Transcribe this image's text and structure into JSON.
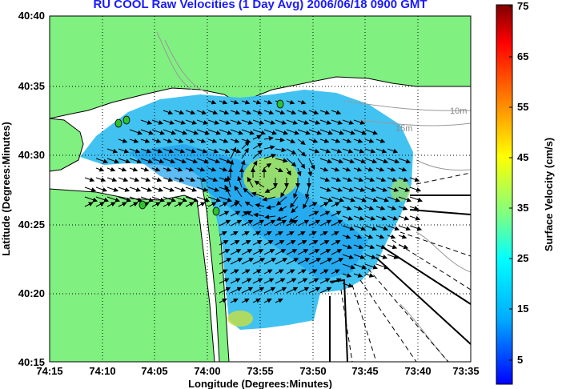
{
  "title": "RU COOL Raw Velocities (1 Day Avg) 2006/06/18 0900 GMT",
  "map": {
    "xlabel": "Longitude (Degrees:Minutes)",
    "ylabel": "Latitude (Degrees:Minutes)",
    "x_ticks": [
      "74:15",
      "74:10",
      "74:05",
      "74:00",
      "73:55",
      "73:50",
      "73:45",
      "73:40",
      "73:35"
    ],
    "y_ticks": [
      "40:40",
      "40:35",
      "40:30",
      "40:25",
      "40:20",
      "40:15"
    ],
    "depth_labels": [
      "10m",
      "15m"
    ],
    "colors": {
      "land": "#80f080",
      "water": "#ffffff",
      "grid": "#000000"
    }
  },
  "colorbar": {
    "label": "Surface Velocity (cm/s)",
    "ticks": [
      "75",
      "65",
      "55",
      "45",
      "35",
      "25",
      "15",
      "5"
    ],
    "range": [
      0,
      75
    ],
    "colors": [
      "#0000ff",
      "#00ffff",
      "#80ff80",
      "#ffff00",
      "#ff8000",
      "#ff0000",
      "#800000"
    ]
  },
  "chart_data": {
    "type": "heatmap",
    "title": "RU COOL Raw Velocities (1 Day Avg) 2006/06/18 0900 GMT",
    "xlabel": "Longitude (Degrees:Minutes)",
    "ylabel": "Latitude (Degrees:Minutes)",
    "xlim": [
      "74:15",
      "73:35"
    ],
    "ylim": [
      "40:15",
      "40:40"
    ],
    "colorbar_label": "Surface Velocity (cm/s)",
    "colorbar_range": [
      0,
      75
    ],
    "grid": true
  }
}
